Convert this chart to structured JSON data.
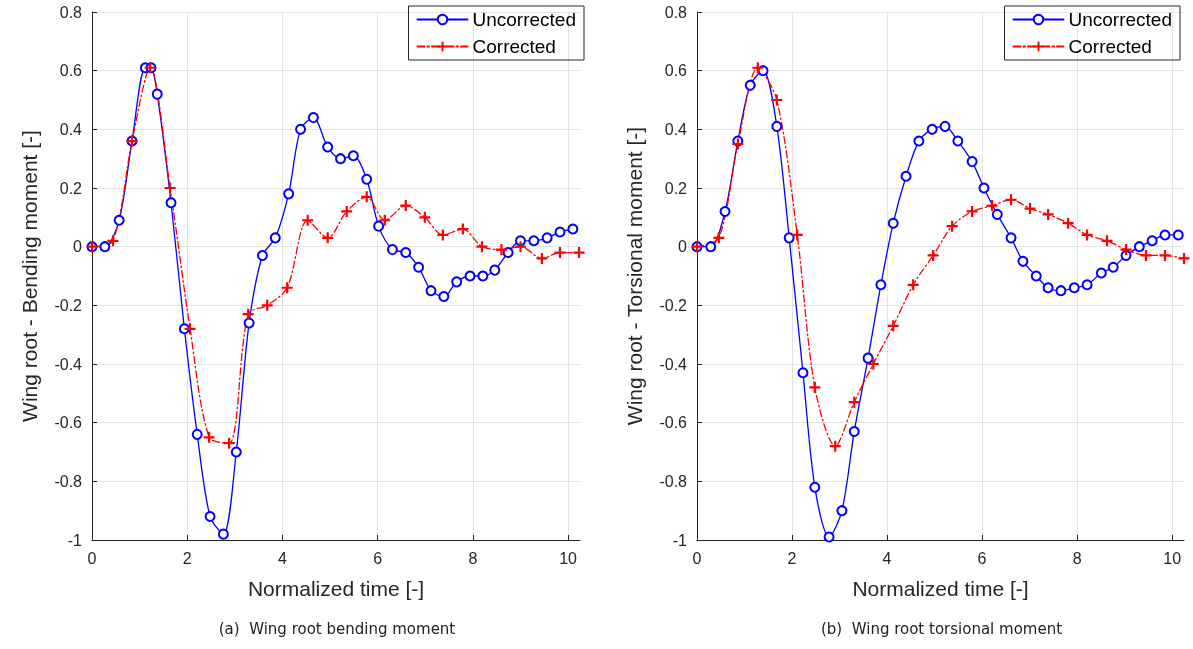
{
  "chart_data": [
    {
      "type": "line",
      "title": "(a)  Wing root bending moment",
      "xlabel": "Normalized time [-]",
      "ylabel": "Wing root - Bending moment [-]",
      "xlim": [
        0,
        10.25
      ],
      "xticks": [
        0,
        2,
        4,
        6,
        8,
        10
      ],
      "ylim": [
        -1,
        0.8
      ],
      "yticks": [
        -1,
        -0.8,
        -0.6,
        -0.4,
        -0.2,
        0,
        0.2,
        0.4,
        0.6,
        0.8
      ],
      "grid": true,
      "legend": "top right",
      "series": [
        {
          "name": "Uncorrected",
          "color": "#0000ff",
          "marker": "circle",
          "line_style": "solid",
          "x": [
            0,
            0.27,
            0.57,
            0.84,
            1.12,
            1.24,
            1.37,
            1.66,
            1.94,
            2.21,
            2.48,
            2.76,
            3.03,
            3.3,
            3.58,
            3.85,
            4.13,
            4.38,
            4.65,
            4.95,
            5.22,
            5.49,
            5.77,
            6.02,
            6.31,
            6.59,
            6.86,
            7.12,
            7.39,
            7.66,
            7.94,
            8.21,
            8.46,
            8.74,
            9.0,
            9.28,
            9.56,
            9.83,
            10.1
          ],
          "values": [
            0,
            0,
            0.09,
            0.36,
            0.61,
            0.61,
            0.52,
            0.15,
            -0.28,
            -0.64,
            -0.92,
            -0.98,
            -0.7,
            -0.26,
            -0.03,
            0.03,
            0.18,
            0.4,
            0.44,
            0.34,
            0.3,
            0.31,
            0.23,
            0.07,
            -0.01,
            -0.02,
            -0.07,
            -0.15,
            -0.17,
            -0.12,
            -0.1,
            -0.1,
            -0.08,
            -0.02,
            0.02,
            0.02,
            0.03,
            0.05,
            0.06
          ]
        },
        {
          "name": "Corrected",
          "color": "#ff0000",
          "marker": "cross",
          "line_style": "dashed",
          "x": [
            0,
            0.44,
            0.84,
            1.22,
            1.64,
            2.06,
            2.46,
            2.88,
            3.28,
            3.68,
            4.1,
            4.53,
            4.95,
            5.35,
            5.77,
            6.15,
            6.59,
            6.99,
            7.37,
            7.79,
            8.19,
            8.6,
            9.0,
            9.45,
            9.83,
            10.23
          ],
          "values": [
            0,
            0.02,
            0.36,
            0.61,
            0.2,
            -0.28,
            -0.65,
            -0.67,
            -0.23,
            -0.2,
            -0.14,
            0.09,
            0.03,
            0.12,
            0.17,
            0.09,
            0.14,
            0.1,
            0.04,
            0.06,
            0,
            -0.01,
            0,
            -0.04,
            -0.02,
            -0.02
          ]
        }
      ]
    },
    {
      "type": "line",
      "title": "(b)  Wing root torsional moment",
      "xlabel": "Normalized time [-]",
      "ylabel": "Wing root - Torsional moment [-]",
      "xlim": [
        0,
        10.25
      ],
      "xticks": [
        0,
        2,
        4,
        6,
        8,
        10
      ],
      "ylim": [
        -1,
        0.8
      ],
      "yticks": [
        -1,
        -0.8,
        -0.6,
        -0.4,
        -0.2,
        0,
        0.2,
        0.4,
        0.6,
        0.8
      ],
      "grid": true,
      "legend": "top right",
      "series": [
        {
          "name": "Uncorrected",
          "color": "#0000ff",
          "marker": "circle",
          "line_style": "solid",
          "x": [
            0,
            0.29,
            0.59,
            0.86,
            1.12,
            1.39,
            1.68,
            1.94,
            2.23,
            2.48,
            2.78,
            3.05,
            3.31,
            3.6,
            3.87,
            4.13,
            4.4,
            4.67,
            4.95,
            5.22,
            5.49,
            5.79,
            6.04,
            6.32,
            6.61,
            6.86,
            7.14,
            7.39,
            7.66,
            7.94,
            8.21,
            8.51,
            8.76,
            9.03,
            9.31,
            9.58,
            9.85,
            10.13
          ],
          "values": [
            0,
            0,
            0.12,
            0.36,
            0.55,
            0.6,
            0.41,
            0.03,
            -0.43,
            -0.82,
            -0.99,
            -0.9,
            -0.63,
            -0.38,
            -0.13,
            0.08,
            0.24,
            0.36,
            0.4,
            0.41,
            0.36,
            0.29,
            0.2,
            0.11,
            0.03,
            -0.05,
            -0.1,
            -0.14,
            -0.15,
            -0.14,
            -0.13,
            -0.09,
            -0.07,
            -0.03,
            0,
            0.02,
            0.04,
            0.04
          ]
        },
        {
          "name": "Corrected",
          "color": "#ff0000",
          "marker": "cross",
          "line_style": "dashed",
          "x": [
            0,
            0.46,
            0.86,
            1.28,
            1.68,
            2.11,
            2.48,
            2.91,
            3.31,
            3.71,
            4.13,
            4.55,
            4.97,
            5.37,
            5.79,
            6.21,
            6.61,
            7.01,
            7.39,
            7.81,
            8.21,
            8.63,
            9.03,
            9.45,
            9.85,
            10.25
          ],
          "values": [
            0,
            0.03,
            0.35,
            0.61,
            0.5,
            0.04,
            -0.48,
            -0.68,
            -0.53,
            -0.4,
            -0.27,
            -0.13,
            -0.03,
            0.07,
            0.12,
            0.14,
            0.16,
            0.13,
            0.11,
            0.08,
            0.04,
            0.02,
            -0.01,
            -0.03,
            -0.03,
            -0.04
          ]
        }
      ]
    }
  ]
}
